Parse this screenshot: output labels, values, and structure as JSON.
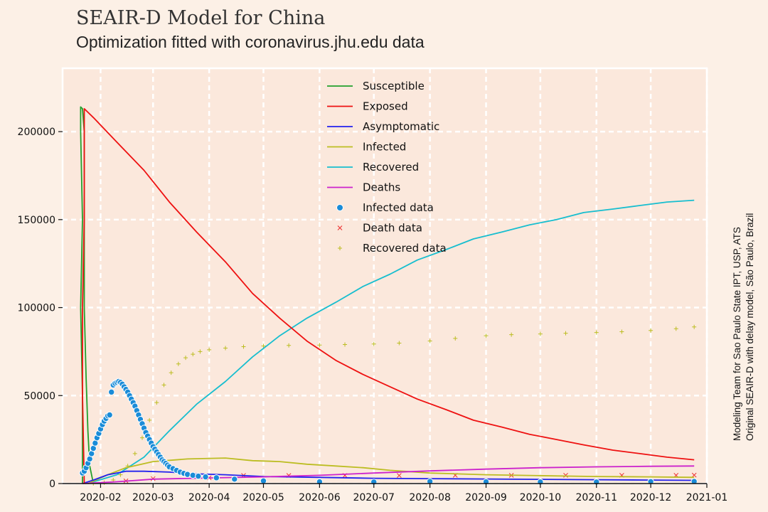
{
  "header": {
    "title": "SEAIR-D Model for China",
    "subtitle": "Optimization fitted with coronavirus.jhu.edu data"
  },
  "side_note": {
    "line1": "Modeling Team for Sao Paulo State IPT, USP, ATS",
    "line2": "Original SEAIR-D with delay model, São Paulo, Brazil"
  },
  "chart_data": {
    "type": "line",
    "x_axis": {
      "type": "date",
      "range": [
        "2020-01-11",
        "2021-01-01"
      ],
      "ticks": [
        "2020-02",
        "2020-03",
        "2020-04",
        "2020-05",
        "2020-06",
        "2020-07",
        "2020-08",
        "2020-09",
        "2020-10",
        "2020-11",
        "2020-12",
        "2021-01"
      ],
      "tick_dates": [
        "2020-02-01",
        "2020-03-01",
        "2020-04-01",
        "2020-05-01",
        "2020-06-01",
        "2020-07-01",
        "2020-08-01",
        "2020-09-01",
        "2020-10-01",
        "2020-11-01",
        "2020-12-01",
        "2021-01-01"
      ]
    },
    "y_axis": {
      "range": [
        0,
        236000
      ],
      "ticks": [
        0,
        50000,
        100000,
        150000,
        200000
      ]
    },
    "grid": true,
    "legend_position": "top-center",
    "series": [
      {
        "name": "Susceptible",
        "kind": "line",
        "color": "#22a02c",
        "points": [
          [
            "2020-01-22",
            0
          ],
          [
            "2020-01-22",
            50000
          ],
          [
            "2020-01-21",
            100000
          ],
          [
            "2020-01-22",
            150000
          ],
          [
            "2020-01-21",
            200000
          ],
          [
            "2020-01-21",
            214000
          ],
          [
            "2020-01-22",
            213000
          ],
          [
            "2020-01-23",
            200000
          ],
          [
            "2020-01-23",
            150000
          ],
          [
            "2020-01-23",
            100000
          ],
          [
            "2020-01-24",
            60000
          ],
          [
            "2020-01-25",
            30000
          ],
          [
            "2020-01-26",
            10000
          ],
          [
            "2020-01-28",
            0
          ]
        ]
      },
      {
        "name": "Exposed",
        "kind": "line",
        "color": "#ee1111",
        "points": [
          [
            "2020-01-23",
            0
          ],
          [
            "2020-01-22",
            50000
          ],
          [
            "2020-01-22",
            100000
          ],
          [
            "2020-01-23",
            150000
          ],
          [
            "2020-01-23",
            200000
          ],
          [
            "2020-01-23",
            213000
          ],
          [
            "2020-01-28",
            208000
          ],
          [
            "2020-02-10",
            194000
          ],
          [
            "2020-02-25",
            178000
          ],
          [
            "2020-03-10",
            160000
          ],
          [
            "2020-03-25",
            143000
          ],
          [
            "2020-04-10",
            126000
          ],
          [
            "2020-04-25",
            108000
          ],
          [
            "2020-05-10",
            94000
          ],
          [
            "2020-05-25",
            81000
          ],
          [
            "2020-06-10",
            70000
          ],
          [
            "2020-06-25",
            62000
          ],
          [
            "2020-07-10",
            55000
          ],
          [
            "2020-07-25",
            48000
          ],
          [
            "2020-08-10",
            42000
          ],
          [
            "2020-08-25",
            36000
          ],
          [
            "2020-09-10",
            32000
          ],
          [
            "2020-09-25",
            28000
          ],
          [
            "2020-10-10",
            25000
          ],
          [
            "2020-10-25",
            22000
          ],
          [
            "2020-11-10",
            19000
          ],
          [
            "2020-11-25",
            17000
          ],
          [
            "2020-12-10",
            15000
          ],
          [
            "2020-12-25",
            13500
          ]
        ]
      },
      {
        "name": "Asymptomatic",
        "kind": "line",
        "color": "#2222ee",
        "points": [
          [
            "2020-01-22",
            0
          ],
          [
            "2020-01-28",
            2000
          ],
          [
            "2020-02-05",
            5000
          ],
          [
            "2020-02-15",
            7000
          ],
          [
            "2020-02-25",
            7000
          ],
          [
            "2020-03-10",
            6500
          ],
          [
            "2020-03-25",
            5500
          ],
          [
            "2020-04-10",
            5000
          ],
          [
            "2020-05-01",
            4000
          ],
          [
            "2020-06-01",
            3500
          ],
          [
            "2020-07-01",
            3000
          ],
          [
            "2020-08-01",
            2800
          ],
          [
            "2020-09-01",
            2600
          ],
          [
            "2020-10-01",
            2400
          ],
          [
            "2020-11-01",
            2200
          ],
          [
            "2020-12-01",
            2000
          ],
          [
            "2020-12-25",
            1800
          ]
        ]
      },
      {
        "name": "Infected",
        "kind": "line",
        "color": "#bcbd22",
        "points": [
          [
            "2020-01-25",
            0
          ],
          [
            "2020-02-05",
            5000
          ],
          [
            "2020-02-15",
            9000
          ],
          [
            "2020-03-01",
            12500
          ],
          [
            "2020-03-20",
            14000
          ],
          [
            "2020-04-10",
            14500
          ],
          [
            "2020-04-25",
            13000
          ],
          [
            "2020-05-10",
            12500
          ],
          [
            "2020-05-25",
            11000
          ],
          [
            "2020-06-10",
            10000
          ],
          [
            "2020-06-25",
            9000
          ],
          [
            "2020-07-10",
            7500
          ],
          [
            "2020-08-01",
            6000
          ],
          [
            "2020-09-01",
            5000
          ],
          [
            "2020-10-01",
            4500
          ],
          [
            "2020-11-01",
            4000
          ],
          [
            "2020-12-01",
            3800
          ],
          [
            "2020-12-25",
            3500
          ]
        ]
      },
      {
        "name": "Recovered",
        "kind": "line",
        "color": "#17becf",
        "points": [
          [
            "2020-01-25",
            0
          ],
          [
            "2020-02-10",
            5000
          ],
          [
            "2020-02-25",
            15000
          ],
          [
            "2020-03-10",
            30000
          ],
          [
            "2020-03-25",
            45000
          ],
          [
            "2020-04-10",
            58000
          ],
          [
            "2020-04-25",
            72000
          ],
          [
            "2020-05-10",
            84000
          ],
          [
            "2020-05-25",
            94000
          ],
          [
            "2020-06-10",
            103000
          ],
          [
            "2020-06-25",
            112000
          ],
          [
            "2020-07-10",
            119000
          ],
          [
            "2020-07-25",
            127000
          ],
          [
            "2020-08-10",
            133000
          ],
          [
            "2020-08-25",
            139000
          ],
          [
            "2020-09-10",
            143000
          ],
          [
            "2020-09-25",
            147000
          ],
          [
            "2020-10-10",
            150000
          ],
          [
            "2020-10-25",
            154000
          ],
          [
            "2020-11-10",
            156000
          ],
          [
            "2020-11-25",
            158000
          ],
          [
            "2020-12-10",
            160000
          ],
          [
            "2020-12-25",
            161000
          ]
        ]
      },
      {
        "name": "Deaths",
        "kind": "line",
        "color": "#cc22cc",
        "points": [
          [
            "2020-01-22",
            0
          ],
          [
            "2020-02-10",
            1000
          ],
          [
            "2020-03-01",
            2500
          ],
          [
            "2020-04-01",
            3200
          ],
          [
            "2020-05-01",
            3800
          ],
          [
            "2020-06-01",
            4700
          ],
          [
            "2020-07-01",
            6000
          ],
          [
            "2020-08-01",
            7200
          ],
          [
            "2020-09-01",
            8200
          ],
          [
            "2020-10-01",
            9000
          ],
          [
            "2020-11-01",
            9500
          ],
          [
            "2020-12-01",
            9800
          ],
          [
            "2020-12-25",
            10000
          ]
        ]
      },
      {
        "name": "Infected data",
        "kind": "scatter",
        "marker": "circle",
        "color": "#1a8cd8",
        "points": [
          [
            "2020-01-22",
            6000
          ],
          [
            "2020-01-23",
            7000
          ],
          [
            "2020-01-24",
            9000
          ],
          [
            "2020-01-25",
            11500
          ],
          [
            "2020-01-26",
            14000
          ],
          [
            "2020-01-27",
            17000
          ],
          [
            "2020-01-28",
            20000
          ],
          [
            "2020-01-29",
            23000
          ],
          [
            "2020-01-30",
            26000
          ],
          [
            "2020-01-31",
            28500
          ],
          [
            "2020-02-01",
            31000
          ],
          [
            "2020-02-02",
            33500
          ],
          [
            "2020-02-03",
            35500
          ],
          [
            "2020-02-04",
            37000
          ],
          [
            "2020-02-05",
            38500
          ],
          [
            "2020-02-06",
            39000
          ],
          [
            "2020-02-07",
            52000
          ],
          [
            "2020-02-08",
            56000
          ],
          [
            "2020-02-09",
            57000
          ],
          [
            "2020-02-10",
            57500
          ],
          [
            "2020-02-11",
            58000
          ],
          [
            "2020-02-12",
            57500
          ],
          [
            "2020-02-13",
            56500
          ],
          [
            "2020-02-14",
            55000
          ],
          [
            "2020-02-15",
            53500
          ],
          [
            "2020-02-16",
            52000
          ],
          [
            "2020-02-17",
            50000
          ],
          [
            "2020-02-18",
            48000
          ],
          [
            "2020-02-19",
            46000
          ],
          [
            "2020-02-20",
            44000
          ],
          [
            "2020-02-21",
            41500
          ],
          [
            "2020-02-22",
            39000
          ],
          [
            "2020-02-23",
            36500
          ],
          [
            "2020-02-24",
            34000
          ],
          [
            "2020-02-25",
            31500
          ],
          [
            "2020-02-26",
            29000
          ],
          [
            "2020-02-27",
            27000
          ],
          [
            "2020-02-28",
            25000
          ],
          [
            "2020-02-29",
            23000
          ],
          [
            "2020-03-01",
            21000
          ],
          [
            "2020-03-02",
            19500
          ],
          [
            "2020-03-03",
            18000
          ],
          [
            "2020-03-04",
            16500
          ],
          [
            "2020-03-05",
            15000
          ],
          [
            "2020-03-06",
            13500
          ],
          [
            "2020-03-07",
            12500
          ],
          [
            "2020-03-08",
            11500
          ],
          [
            "2020-03-09",
            10500
          ],
          [
            "2020-03-10",
            9500
          ],
          [
            "2020-03-12",
            8500
          ],
          [
            "2020-03-14",
            7500
          ],
          [
            "2020-03-16",
            6500
          ],
          [
            "2020-03-18",
            5800
          ],
          [
            "2020-03-20",
            5200
          ],
          [
            "2020-03-23",
            4700
          ],
          [
            "2020-03-26",
            4200
          ],
          [
            "2020-03-30",
            3800
          ],
          [
            "2020-04-05",
            3300
          ],
          [
            "2020-04-15",
            2500
          ],
          [
            "2020-05-01",
            1500
          ],
          [
            "2020-06-01",
            1000
          ],
          [
            "2020-07-01",
            900
          ],
          [
            "2020-08-01",
            1200
          ],
          [
            "2020-09-01",
            1000
          ],
          [
            "2020-10-01",
            900
          ],
          [
            "2020-11-01",
            900
          ],
          [
            "2020-12-01",
            1100
          ],
          [
            "2020-12-25",
            1200
          ]
        ]
      },
      {
        "name": "Death data",
        "kind": "scatter",
        "marker": "x",
        "color": "#ee3333",
        "points": [
          [
            "2020-02-15",
            1500
          ],
          [
            "2020-03-01",
            2800
          ],
          [
            "2020-04-01",
            3300
          ],
          [
            "2020-04-20",
            4600
          ],
          [
            "2020-05-15",
            4600
          ],
          [
            "2020-06-15",
            4600
          ],
          [
            "2020-07-15",
            4600
          ],
          [
            "2020-08-15",
            4700
          ],
          [
            "2020-09-15",
            4700
          ],
          [
            "2020-10-15",
            4700
          ],
          [
            "2020-11-15",
            4700
          ],
          [
            "2020-12-15",
            4700
          ],
          [
            "2020-12-25",
            4800
          ]
        ]
      },
      {
        "name": "Recovered data",
        "kind": "scatter",
        "marker": "plus",
        "color": "#bcbd22",
        "points": [
          [
            "2020-01-28",
            100
          ],
          [
            "2020-02-03",
            500
          ],
          [
            "2020-02-08",
            2000
          ],
          [
            "2020-02-12",
            5000
          ],
          [
            "2020-02-16",
            10000
          ],
          [
            "2020-02-20",
            17000
          ],
          [
            "2020-02-24",
            26000
          ],
          [
            "2020-02-28",
            36000
          ],
          [
            "2020-03-03",
            46000
          ],
          [
            "2020-03-07",
            56000
          ],
          [
            "2020-03-11",
            63000
          ],
          [
            "2020-03-15",
            68000
          ],
          [
            "2020-03-19",
            71500
          ],
          [
            "2020-03-23",
            73500
          ],
          [
            "2020-03-27",
            75000
          ],
          [
            "2020-04-01",
            76000
          ],
          [
            "2020-04-10",
            77000
          ],
          [
            "2020-04-20",
            77800
          ],
          [
            "2020-05-01",
            78200
          ],
          [
            "2020-05-15",
            78500
          ],
          [
            "2020-06-01",
            78700
          ],
          [
            "2020-06-15",
            79000
          ],
          [
            "2020-07-01",
            79300
          ],
          [
            "2020-07-15",
            79800
          ],
          [
            "2020-08-01",
            81000
          ],
          [
            "2020-08-15",
            82500
          ],
          [
            "2020-09-01",
            84000
          ],
          [
            "2020-09-15",
            84600
          ],
          [
            "2020-10-01",
            85000
          ],
          [
            "2020-10-15",
            85400
          ],
          [
            "2020-11-01",
            85800
          ],
          [
            "2020-11-15",
            86300
          ],
          [
            "2020-12-01",
            87000
          ],
          [
            "2020-12-15",
            88000
          ],
          [
            "2020-12-25",
            89000
          ]
        ]
      }
    ]
  }
}
